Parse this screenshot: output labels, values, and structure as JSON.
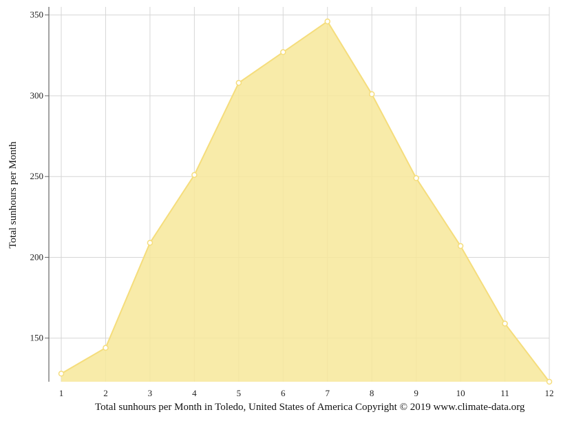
{
  "caption": "Total sunhours per Month in Toledo, United States of America Copyright © 2019 www.climate-data.org",
  "chart_data": {
    "type": "area",
    "x": [
      1,
      2,
      3,
      4,
      5,
      6,
      7,
      8,
      9,
      10,
      11,
      12
    ],
    "x_tick_labels": [
      "1",
      "2",
      "3",
      "4",
      "5",
      "6",
      "7",
      "8",
      "9",
      "10",
      "11",
      "12"
    ],
    "series": [
      {
        "values": [
          128,
          144,
          209,
          251,
          308,
          327,
          346,
          301,
          249,
          207,
          159,
          123
        ]
      }
    ],
    "ylabel": "Total sunhours per Month",
    "xlabel": "",
    "ylim": [
      123,
      355
    ],
    "xlim": [
      1,
      12
    ],
    "y_ticks": [
      150,
      200,
      250,
      300,
      350
    ],
    "grid": true,
    "fill_color": "#f7e79a",
    "line_color": "#f5dd7c",
    "marker_color": "#ffffff"
  }
}
